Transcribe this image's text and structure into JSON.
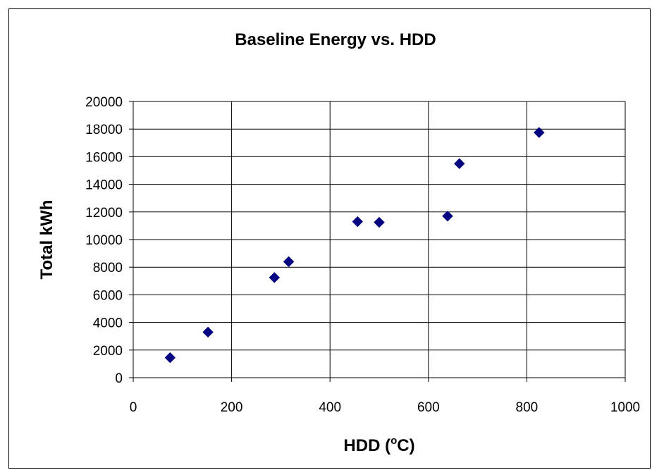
{
  "chart_data": {
    "type": "scatter",
    "title": "Baseline Energy vs. HDD",
    "xlabel_main": "HDD (",
    "xlabel_sup": "o",
    "xlabel_tail": "C)",
    "ylabel": "Total kWh",
    "xlim": [
      0,
      1000
    ],
    "ylim": [
      0,
      20000
    ],
    "x_ticks": [
      0,
      200,
      400,
      600,
      800,
      1000
    ],
    "y_ticks": [
      0,
      2000,
      4000,
      6000,
      8000,
      10000,
      12000,
      14000,
      16000,
      18000,
      20000
    ],
    "grid": true,
    "marker": "diamond",
    "marker_color": "#000080",
    "points": [
      {
        "x": 75,
        "y": 1450
      },
      {
        "x": 152,
        "y": 3300
      },
      {
        "x": 287,
        "y": 7250
      },
      {
        "x": 316,
        "y": 8400
      },
      {
        "x": 456,
        "y": 11300
      },
      {
        "x": 500,
        "y": 11250
      },
      {
        "x": 639,
        "y": 11700
      },
      {
        "x": 663,
        "y": 15500
      },
      {
        "x": 825,
        "y": 17750
      }
    ]
  }
}
